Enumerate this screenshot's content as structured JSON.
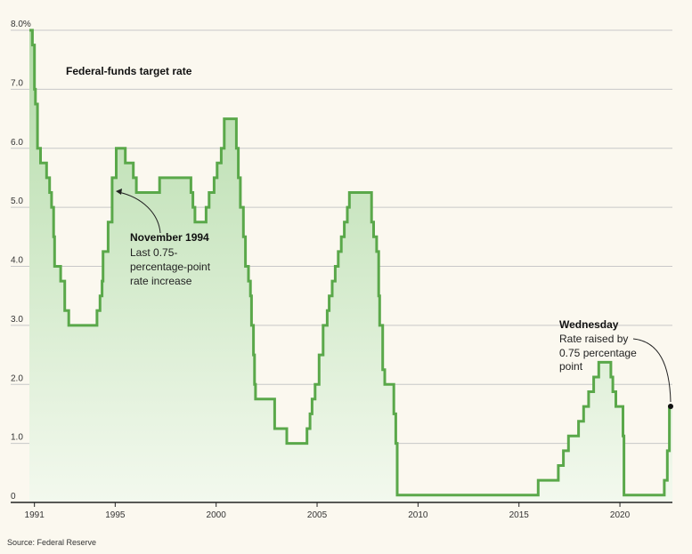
{
  "chart_data": {
    "type": "area",
    "title": "Federal-funds target rate",
    "ylim": [
      0,
      8
    ],
    "xlim": [
      1990.75,
      2022.6
    ],
    "yticks": [
      {
        "value": 8,
        "label": "8.0%"
      },
      {
        "value": 7,
        "label": "7.0"
      },
      {
        "value": 6,
        "label": "6.0"
      },
      {
        "value": 5,
        "label": "5.0"
      },
      {
        "value": 4,
        "label": "4.0"
      },
      {
        "value": 3,
        "label": "3.0"
      },
      {
        "value": 2,
        "label": "2.0"
      },
      {
        "value": 1,
        "label": "1.0"
      },
      {
        "value": 0,
        "label": "0"
      }
    ],
    "xticks": [
      {
        "value": 1991,
        "label": "1991"
      },
      {
        "value": 1995,
        "label": "1995"
      },
      {
        "value": 2000,
        "label": "2000"
      },
      {
        "value": 2005,
        "label": "2005"
      },
      {
        "value": 2010,
        "label": "2010"
      },
      {
        "value": 2015,
        "label": "2015"
      },
      {
        "value": 2020,
        "label": "2020"
      }
    ],
    "grid": true,
    "series": [
      {
        "step": true,
        "points": [
          [
            1990.75,
            8.0
          ],
          [
            1990.9,
            7.75
          ],
          [
            1991.0,
            7.0
          ],
          [
            1991.05,
            6.75
          ],
          [
            1991.15,
            6.0
          ],
          [
            1991.3,
            5.75
          ],
          [
            1991.6,
            5.5
          ],
          [
            1991.75,
            5.25
          ],
          [
            1991.85,
            5.0
          ],
          [
            1991.95,
            4.5
          ],
          [
            1992.0,
            4.0
          ],
          [
            1992.3,
            3.75
          ],
          [
            1992.5,
            3.25
          ],
          [
            1992.7,
            3.0
          ],
          [
            1994.1,
            3.25
          ],
          [
            1994.25,
            3.5
          ],
          [
            1994.35,
            3.75
          ],
          [
            1994.4,
            4.25
          ],
          [
            1994.65,
            4.75
          ],
          [
            1994.85,
            5.5
          ],
          [
            1995.05,
            6.0
          ],
          [
            1995.5,
            5.75
          ],
          [
            1995.9,
            5.5
          ],
          [
            1996.05,
            5.25
          ],
          [
            1997.2,
            5.5
          ],
          [
            1998.75,
            5.25
          ],
          [
            1998.85,
            5.0
          ],
          [
            1998.95,
            4.75
          ],
          [
            1999.5,
            5.0
          ],
          [
            1999.65,
            5.25
          ],
          [
            1999.9,
            5.5
          ],
          [
            2000.05,
            5.75
          ],
          [
            2000.25,
            6.0
          ],
          [
            2000.4,
            6.5
          ],
          [
            2001.0,
            6.0
          ],
          [
            2001.1,
            5.5
          ],
          [
            2001.2,
            5.0
          ],
          [
            2001.35,
            4.5
          ],
          [
            2001.45,
            4.0
          ],
          [
            2001.6,
            3.75
          ],
          [
            2001.7,
            3.5
          ],
          [
            2001.75,
            3.0
          ],
          [
            2001.85,
            2.5
          ],
          [
            2001.9,
            2.0
          ],
          [
            2001.95,
            1.75
          ],
          [
            2002.9,
            1.25
          ],
          [
            2003.5,
            1.0
          ],
          [
            2004.5,
            1.25
          ],
          [
            2004.65,
            1.5
          ],
          [
            2004.75,
            1.75
          ],
          [
            2004.9,
            2.0
          ],
          [
            2005.1,
            2.5
          ],
          [
            2005.3,
            3.0
          ],
          [
            2005.5,
            3.25
          ],
          [
            2005.6,
            3.5
          ],
          [
            2005.75,
            3.75
          ],
          [
            2005.9,
            4.0
          ],
          [
            2006.05,
            4.25
          ],
          [
            2006.2,
            4.5
          ],
          [
            2006.35,
            4.75
          ],
          [
            2006.5,
            5.0
          ],
          [
            2006.6,
            5.25
          ],
          [
            2007.7,
            4.75
          ],
          [
            2007.8,
            4.5
          ],
          [
            2007.95,
            4.25
          ],
          [
            2008.05,
            3.5
          ],
          [
            2008.1,
            3.0
          ],
          [
            2008.25,
            2.25
          ],
          [
            2008.35,
            2.0
          ],
          [
            2008.8,
            1.5
          ],
          [
            2008.9,
            1.0
          ],
          [
            2008.97,
            0.125
          ],
          [
            2015.95,
            0.375
          ],
          [
            2016.95,
            0.625
          ],
          [
            2017.2,
            0.875
          ],
          [
            2017.45,
            1.125
          ],
          [
            2017.95,
            1.375
          ],
          [
            2018.2,
            1.625
          ],
          [
            2018.45,
            1.875
          ],
          [
            2018.7,
            2.125
          ],
          [
            2018.95,
            2.375
          ],
          [
            2019.55,
            2.125
          ],
          [
            2019.65,
            1.875
          ],
          [
            2019.8,
            1.625
          ],
          [
            2020.15,
            1.125
          ],
          [
            2020.2,
            0.125
          ],
          [
            2022.2,
            0.375
          ],
          [
            2022.35,
            0.875
          ],
          [
            2022.45,
            1.625
          ],
          [
            2022.6,
            1.625
          ]
        ]
      }
    ],
    "annotations": [
      {
        "title": "November 1994",
        "lines": [
          "Last 0.75-",
          "percentage-point",
          "rate increase"
        ],
        "x": 1994.87,
        "y": 5.5
      },
      {
        "title": "Wednesday",
        "lines": [
          "Rate raised by",
          "0.75 percentage",
          "point"
        ],
        "x": 2022.55,
        "y": 1.625
      }
    ],
    "source": "Source: Federal Reserve",
    "colors": {
      "line": "#5aa84a",
      "fill_top": "#b3dba8",
      "fill_bottom": "#f3f9ee",
      "grid": "#c8c8c8",
      "background": "#fbf8ef",
      "axis": "#222222"
    }
  }
}
